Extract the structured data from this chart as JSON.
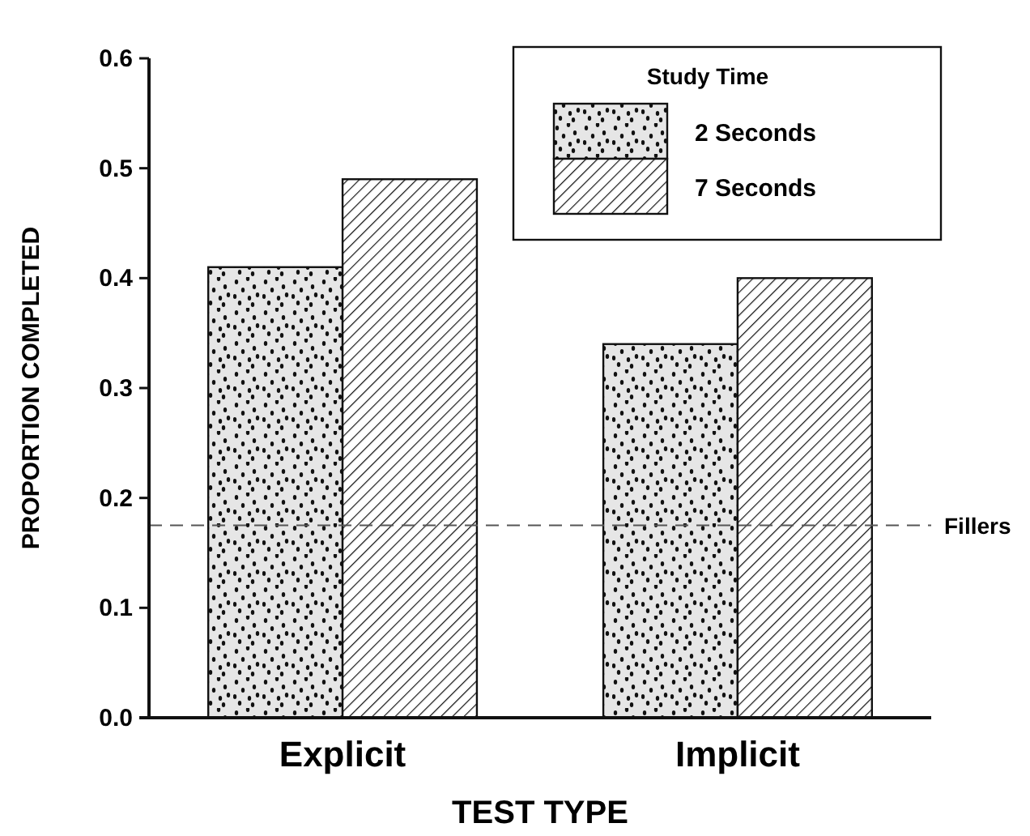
{
  "chart_data": {
    "type": "bar",
    "xlabel": "TEST TYPE",
    "ylabel": "PROPORTION COMPLETED",
    "legend_title": "Study Time",
    "categories": [
      "Explicit",
      "Implicit"
    ],
    "series": [
      {
        "name": "2 Seconds",
        "color": "#111111",
        "values": [
          0.41,
          0.34
        ]
      },
      {
        "name": "7 Seconds",
        "color": "#111111",
        "values": [
          0.49,
          0.4
        ]
      }
    ],
    "ylim": [
      0,
      0.6
    ],
    "yticks": [
      {
        "value": 0,
        "label": "0.0"
      },
      0.1,
      0.2,
      0.3,
      0.4,
      0.5,
      0.6
    ],
    "grid": false,
    "legend": "top right",
    "ref_lines": [
      {
        "axis": "y",
        "value": 0.175,
        "label": "Fillers",
        "line_style": "dashed",
        "color": "#555555"
      }
    ]
  }
}
